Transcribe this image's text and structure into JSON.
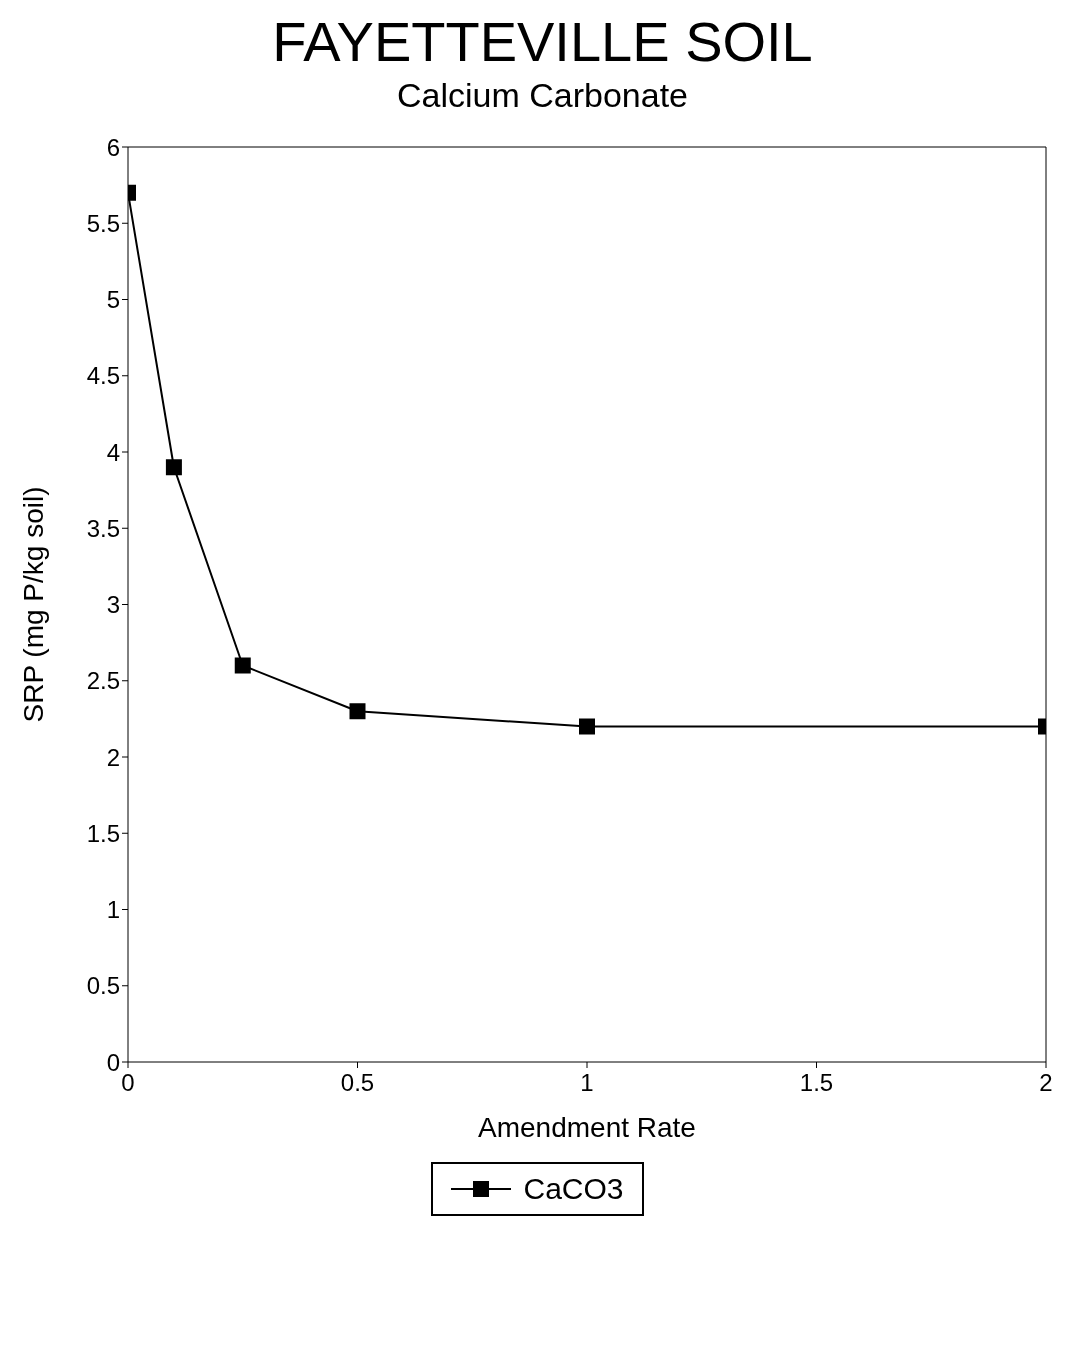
{
  "chart_data": {
    "type": "line",
    "title": "FAYETTEVILLE SOIL",
    "subtitle": "Calcium Carbonate",
    "xlabel": "Amendment Rate",
    "ylabel": "SRP (mg P/kg soil)",
    "x": [
      0,
      0.1,
      0.25,
      0.5,
      1,
      2
    ],
    "series": [
      {
        "name": "CaCO3",
        "color": "#000000",
        "values": [
          5.7,
          3.9,
          2.6,
          2.3,
          2.2,
          2.2
        ]
      }
    ],
    "xlim": [
      0,
      2
    ],
    "xticks": [
      0,
      0.5,
      1,
      1.5,
      2
    ],
    "ylim": [
      0,
      6
    ],
    "yticks": [
      0,
      0.5,
      1,
      1.5,
      2,
      2.5,
      3,
      3.5,
      4,
      4.5,
      5,
      5.5,
      6
    ],
    "grid": false,
    "legend": "bottom",
    "marker": "square",
    "line_style": "solid"
  }
}
